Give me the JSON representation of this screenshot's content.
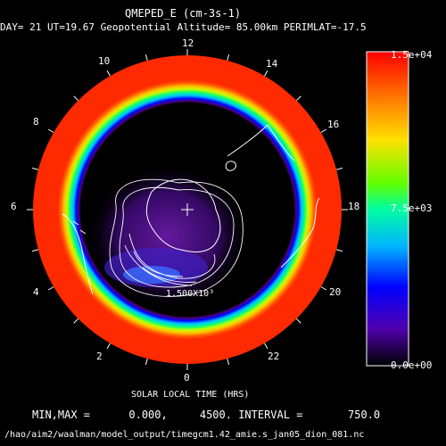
{
  "chart_data": {
    "type": "heatmap",
    "title": "QMEPED_E (cm-3s-1)",
    "subtitle": "DAY= 21 UT=19.67 Geopotential Altitude= 85.00km PERIMLAT=-17.5",
    "xlabel": "SOLAR LOCAL TIME (HRS)",
    "hour_labels": [
      "12",
      "14",
      "16",
      "18",
      "20",
      "22",
      "0",
      "2",
      "4",
      "6",
      "8",
      "10"
    ],
    "colorbar": {
      "min": 0,
      "max": 15000,
      "tick_labels": [
        "1.5e+04",
        "7.5e+03",
        "0.0e+00"
      ]
    },
    "contour_label": "1.500X10³",
    "contour_levels": [
      750,
      1500,
      2250,
      3000,
      3750
    ],
    "min": 0,
    "max": 4500,
    "interval": 750,
    "stats_line": "MIN,MAX =      0.000,     4500. INTERVAL =       750.0",
    "file_path": "/hao/aim2/waalman/model_output/timegcm1.42_amie.s_jan05_dion_081.nc"
  },
  "colors": {
    "background": "#000000",
    "ring": "#ff2a00",
    "contour": "#ffffff",
    "coastline": "#ffffff"
  }
}
